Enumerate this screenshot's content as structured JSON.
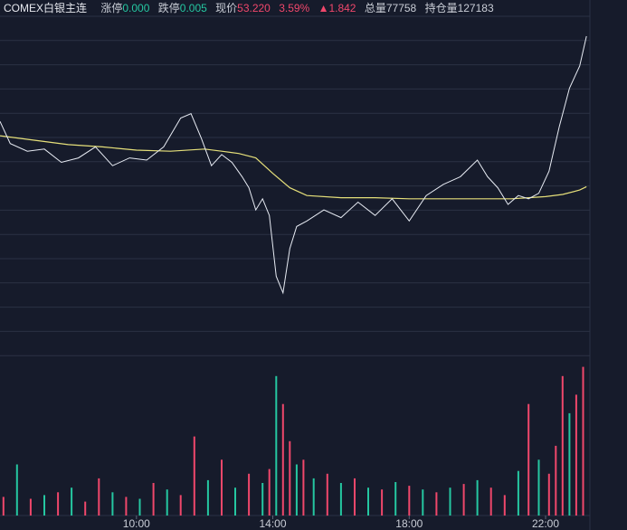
{
  "header": {
    "title": "COMEX白银主连",
    "limit_up_label": "涨停",
    "limit_up_value": "0.000",
    "limit_down_label": "跌停",
    "limit_down_value": "0.005",
    "price_label": "现价",
    "price_value": "53.220",
    "change_pct": "3.59%",
    "change_value": "▲1.842",
    "volume_label": "总量",
    "volume_value": "77758",
    "oi_label": "持仓量",
    "oi_value": "127183"
  },
  "colors": {
    "background": "#161b2b",
    "grid": "#2b3244",
    "price_line": "#e8ecf4",
    "avg_line": "#e6e07a",
    "up": "#f0476b",
    "down": "#25c7a1"
  },
  "chart_data": {
    "type": "line",
    "title": "",
    "x_ticks": [
      "10:00",
      "14:00",
      "18:00",
      "22:00"
    ],
    "x_tick_hours": [
      10,
      14,
      18,
      22
    ],
    "x_range_hours": [
      6.0,
      23.3
    ],
    "price_ylim": [
      50.4,
      53.4
    ],
    "price_series": {
      "name": "",
      "x": [
        6.0,
        6.3,
        6.8,
        7.3,
        7.8,
        8.3,
        8.8,
        9.3,
        9.8,
        10.3,
        10.8,
        11.3,
        11.6,
        11.9,
        12.2,
        12.5,
        12.8,
        13.1,
        13.3,
        13.5,
        13.7,
        13.9,
        14.1,
        14.3,
        14.5,
        14.7,
        15.0,
        15.5,
        16.0,
        16.5,
        17.0,
        17.5,
        18.0,
        18.5,
        19.0,
        19.5,
        20.0,
        20.3,
        20.6,
        20.9,
        21.2,
        21.5,
        21.8,
        22.1,
        22.4,
        22.7,
        23.0,
        23.2
      ],
      "y": [
        52.45,
        52.25,
        52.18,
        52.2,
        52.08,
        52.12,
        52.22,
        52.05,
        52.12,
        52.1,
        52.22,
        52.48,
        52.52,
        52.3,
        52.05,
        52.15,
        52.08,
        51.95,
        51.85,
        51.65,
        51.75,
        51.6,
        51.05,
        50.9,
        51.3,
        51.5,
        51.55,
        51.65,
        51.58,
        51.72,
        51.6,
        51.75,
        51.55,
        51.78,
        51.88,
        51.95,
        52.1,
        51.95,
        51.85,
        51.7,
        51.78,
        51.75,
        51.8,
        52.0,
        52.4,
        52.75,
        52.95,
        53.22
      ]
    },
    "avg_series": {
      "name": "",
      "x": [
        6.0,
        7.0,
        8.0,
        9.0,
        10.0,
        11.0,
        12.0,
        12.5,
        13.0,
        13.5,
        14.0,
        14.5,
        15.0,
        16.0,
        17.0,
        18.0,
        19.0,
        20.0,
        21.0,
        21.5,
        22.0,
        22.5,
        23.0,
        23.2
      ],
      "y": [
        52.32,
        52.28,
        52.24,
        52.22,
        52.19,
        52.18,
        52.2,
        52.18,
        52.16,
        52.12,
        51.98,
        51.85,
        51.78,
        51.76,
        51.76,
        51.75,
        51.75,
        51.75,
        51.75,
        51.76,
        51.77,
        51.79,
        51.83,
        51.86
      ]
    },
    "volume_ylim": [
      0,
      180
    ],
    "volume_series": {
      "name": "",
      "x": [
        6.1,
        6.5,
        6.9,
        7.3,
        7.7,
        8.1,
        8.5,
        8.9,
        9.3,
        9.7,
        10.1,
        10.5,
        10.9,
        11.3,
        11.7,
        12.1,
        12.5,
        12.9,
        13.3,
        13.7,
        13.9,
        14.1,
        14.3,
        14.5,
        14.7,
        14.9,
        15.2,
        15.6,
        16.0,
        16.4,
        16.8,
        17.2,
        17.6,
        18.0,
        18.4,
        18.8,
        19.2,
        19.6,
        20.0,
        20.4,
        20.8,
        21.2,
        21.5,
        21.8,
        22.1,
        22.3,
        22.5,
        22.7,
        22.9,
        23.1
      ],
      "values": [
        20,
        55,
        18,
        22,
        25,
        30,
        15,
        40,
        25,
        20,
        18,
        35,
        28,
        22,
        85,
        38,
        60,
        30,
        45,
        35,
        50,
        150,
        120,
        80,
        55,
        60,
        40,
        45,
        35,
        40,
        30,
        28,
        36,
        32,
        28,
        25,
        30,
        34,
        38,
        30,
        22,
        48,
        120,
        60,
        45,
        75,
        150,
        110,
        130,
        160
      ],
      "up": [
        true,
        false,
        true,
        false,
        true,
        false,
        true,
        true,
        false,
        true,
        false,
        true,
        false,
        true,
        true,
        false,
        true,
        false,
        true,
        false,
        true,
        false,
        true,
        true,
        false,
        true,
        false,
        true,
        false,
        true,
        false,
        true,
        false,
        true,
        false,
        true,
        false,
        true,
        false,
        true,
        true,
        false,
        true,
        false,
        true,
        true,
        true,
        false,
        true,
        true
      ]
    }
  }
}
